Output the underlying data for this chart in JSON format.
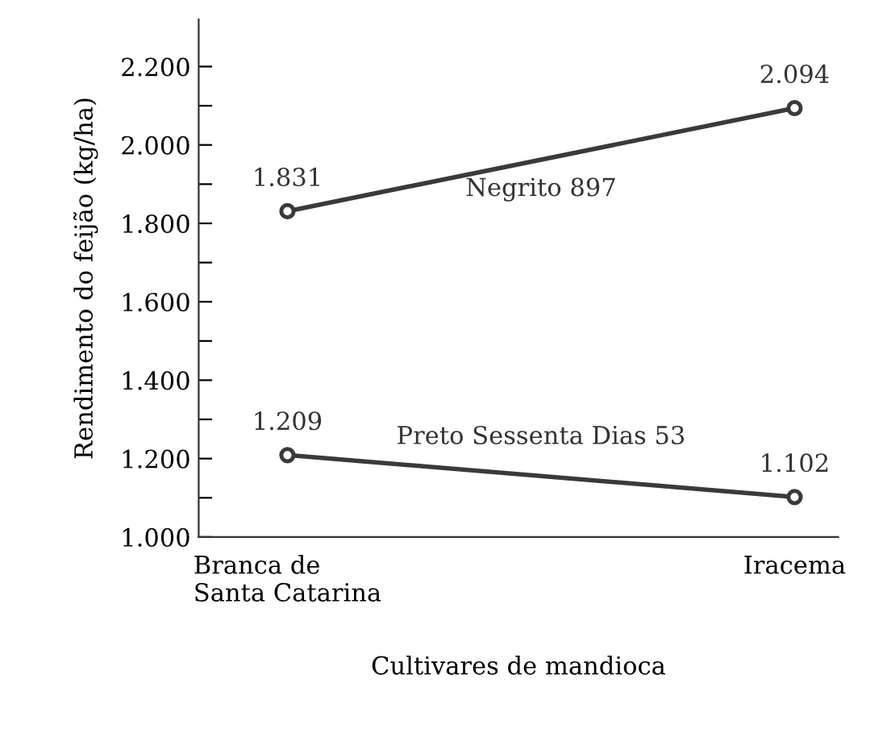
{
  "chart_data": {
    "type": "line",
    "xlabel": "Cultivares de mandioca",
    "ylabel": "Rendimento do feijão (kg/ha)",
    "categories": [
      "Branca de\nSanta Catarina",
      "Iracema"
    ],
    "series": [
      {
        "name": "Negrito 897",
        "color": "#3a3a3a",
        "values": [
          1831,
          2094
        ],
        "value_labels": [
          "1.831",
          "2.094"
        ]
      },
      {
        "name": "Preto Sessenta Dias 53",
        "color": "#3a3a3a",
        "values": [
          1209,
          1102
        ],
        "value_labels": [
          "1.209",
          "1.102"
        ]
      }
    ],
    "ylim": [
      1000,
      2320
    ],
    "yticks": [
      {
        "value": 1000,
        "label": "1.000"
      },
      {
        "value": 1100,
        "label": null
      },
      {
        "value": 1200,
        "label": "1.200"
      },
      {
        "value": 1300,
        "label": null
      },
      {
        "value": 1400,
        "label": "1.400"
      },
      {
        "value": 1500,
        "label": null
      },
      {
        "value": 1600,
        "label": "1.600"
      },
      {
        "value": 1700,
        "label": null
      },
      {
        "value": 1800,
        "label": "1.800"
      },
      {
        "value": 1900,
        "label": null
      },
      {
        "value": 2000,
        "label": "2.000"
      },
      {
        "value": 2100,
        "label": null
      },
      {
        "value": 2200,
        "label": "2.200"
      }
    ],
    "marker": "circle",
    "grid": false,
    "legend": false
  }
}
